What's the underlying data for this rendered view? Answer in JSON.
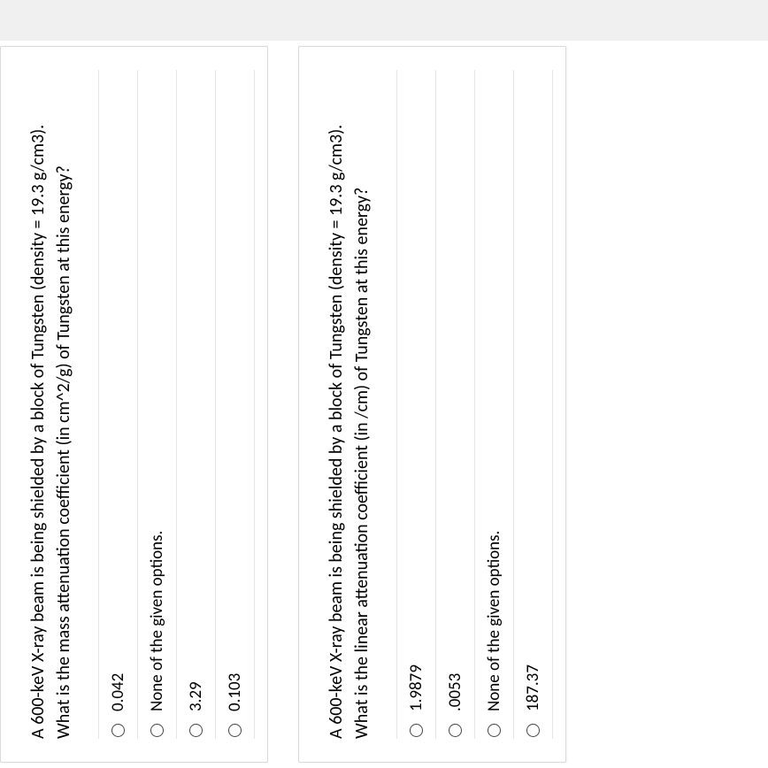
{
  "background_color": "#ffffff",
  "border_color": "#e6e6e6",
  "text_color": "#000000",
  "font_family": "Calibri",
  "questions": [
    {
      "prompt_line1": "A 600-keV  X-ray beam is being shielded by a block of Tungsten (density = 19.3 g/cm3).",
      "prompt_line2": "What is the mass attenuation coefficient (in cm^2/g) of Tungsten at this energy?",
      "options": [
        "0.042",
        "None of the given options.",
        "3.29",
        "0.103"
      ]
    },
    {
      "prompt_line1": "A 600-keV  X-ray beam is being shielded by a block of Tungsten (density = 19.3 g/cm3).",
      "prompt_line2": "What is the linear attenuation coefficient (in /cm) of Tungsten at this energy?",
      "options": [
        "1.9879",
        ".0053",
        "None of the given options.",
        "187.37"
      ]
    }
  ]
}
